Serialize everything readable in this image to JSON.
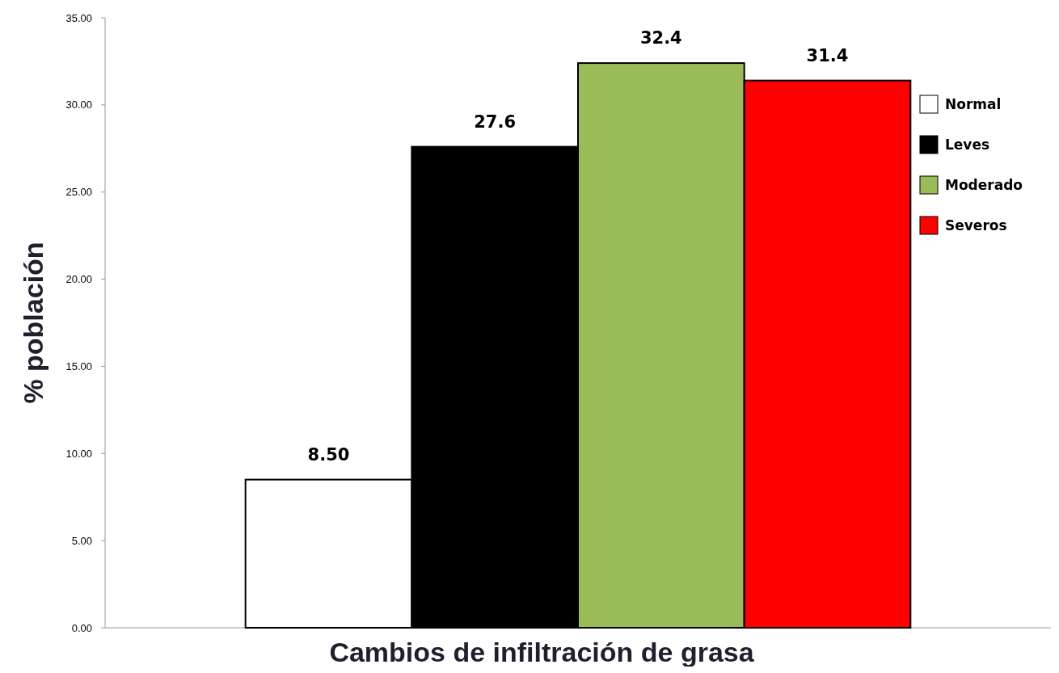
{
  "chart_data": {
    "type": "bar",
    "xlabel": "Cambios de infiltración de grasa",
    "ylabel": "% población",
    "categories": [
      null
    ],
    "series": [
      {
        "name": "Normal",
        "color": "#ffffff",
        "values": [
          8.5
        ],
        "value_labels": [
          "8.50"
        ]
      },
      {
        "name": "Leves",
        "color": "#000000",
        "values": [
          27.6
        ],
        "value_labels": [
          "27.6"
        ]
      },
      {
        "name": "Moderado",
        "color": "#9bbb59",
        "values": [
          32.4
        ],
        "value_labels": [
          "32.4"
        ]
      },
      {
        "name": "Severos",
        "color": "#ff0000",
        "values": [
          31.4
        ],
        "value_labels": [
          "31.4"
        ]
      }
    ],
    "ylim": [
      0,
      35
    ],
    "yticks": [
      {
        "value": 0,
        "label": "0.00"
      },
      {
        "value": 5,
        "label": "5.00"
      },
      {
        "value": 10,
        "label": "10.00"
      },
      {
        "value": 15,
        "label": "15.00"
      },
      {
        "value": 20,
        "label": "20.00"
      },
      {
        "value": 25,
        "label": "25.00"
      },
      {
        "value": 30,
        "label": "30.00"
      },
      {
        "value": 35,
        "label": "35.00"
      }
    ],
    "legend": "right"
  }
}
